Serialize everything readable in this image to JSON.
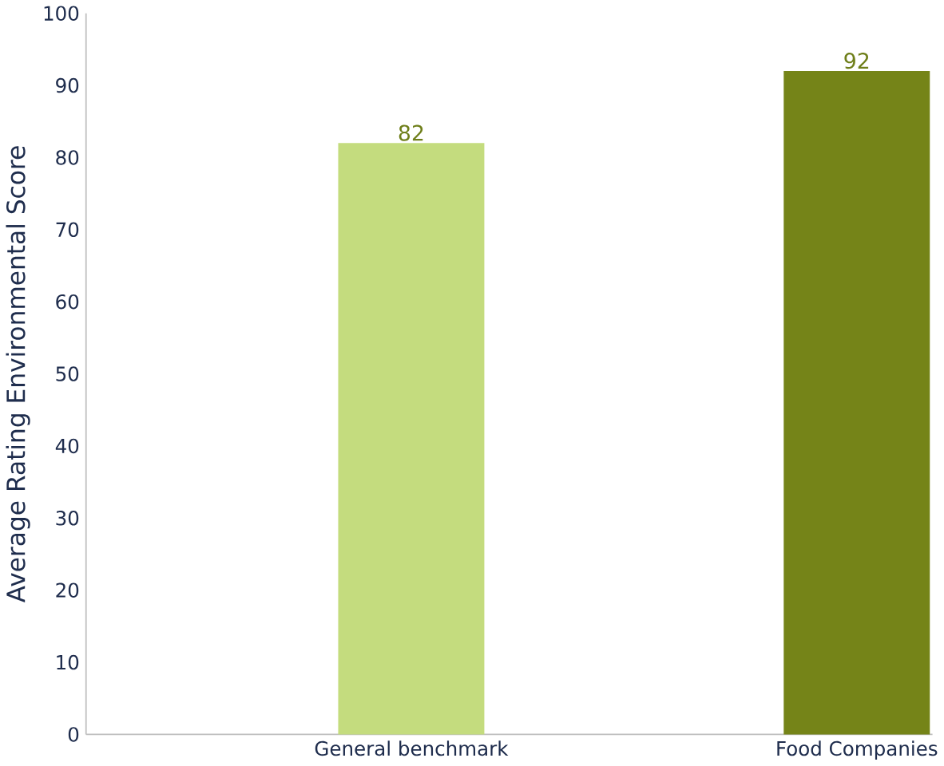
{
  "chart_data": {
    "type": "bar",
    "ylabel": "Average Rating Environmental Score",
    "categories": [
      "General benchmark",
      "Food Companies"
    ],
    "values": [
      82,
      92
    ],
    "colors": [
      "#c4dc7e",
      "#758418"
    ],
    "ylim": [
      0,
      100
    ],
    "yticks": [
      0,
      10,
      20,
      30,
      40,
      50,
      60,
      70,
      80,
      90,
      100
    ],
    "data_labels": true
  }
}
